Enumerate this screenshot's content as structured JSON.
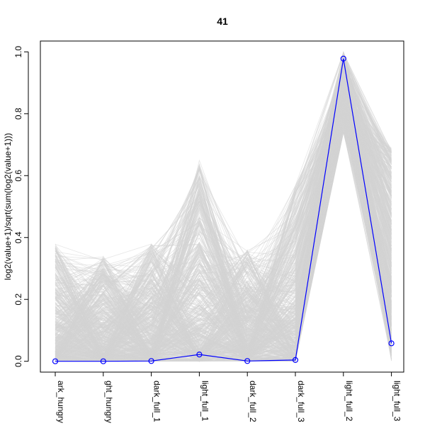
{
  "chart_data": {
    "type": "line",
    "title": "41",
    "xlabel": "",
    "ylabel": "log2(value+1)/sqrt(sum(log2(value+1)))",
    "categories": [
      "dark_hungry",
      "light_hungry",
      "dark_full_1",
      "light_full_1",
      "dark_full_2",
      "dark_full_3",
      "light_full_2",
      "light_full_3"
    ],
    "category_tick_labels": [
      "ark_hungry",
      "ght_hungry",
      "dark_full_1",
      "light_full_1",
      "dark_full_2",
      "dark_full_3",
      "light_full_2",
      "light_full_3"
    ],
    "ylim": [
      -0.035,
      1.035
    ],
    "yticks": [
      0.0,
      0.2,
      0.4,
      0.6,
      0.8,
      1.0
    ],
    "ytick_labels": [
      "0.0",
      "0.2",
      "0.4",
      "0.6",
      "0.8",
      "1.0"
    ],
    "grid": false,
    "legend": "none",
    "series": [
      {
        "values": [
          0.0,
          0.0,
          0.001,
          0.022,
          0.001,
          0.004,
          0.978,
          0.058
        ]
      }
    ],
    "background_profiles": {
      "count": 600,
      "color": "#d3d3d3",
      "ranges": [
        [
          0.0,
          0.38
        ],
        [
          0.0,
          0.34
        ],
        [
          0.0,
          0.38
        ],
        [
          0.0,
          0.65
        ],
        [
          0.0,
          0.36
        ],
        [
          0.0,
          0.57
        ],
        [
          0.42,
          1.0
        ],
        [
          0.0,
          0.69
        ]
      ]
    },
    "highlight_color": "#0000ff"
  }
}
